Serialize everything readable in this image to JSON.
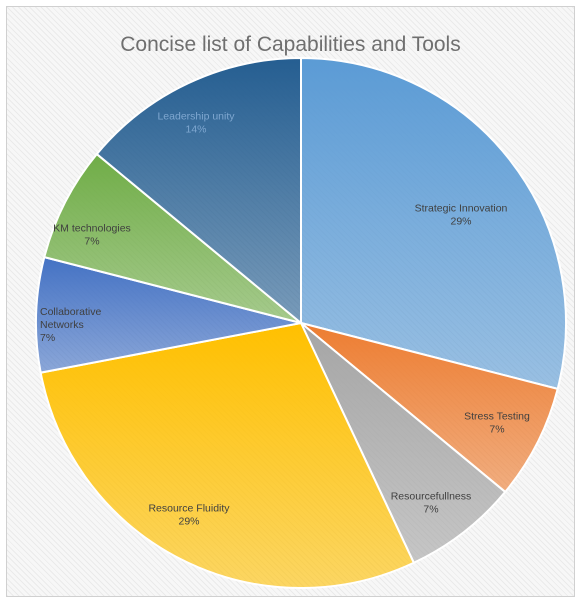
{
  "chart_data": {
    "type": "pie",
    "title": "Concise list of Capabilities and Tools",
    "categories": [
      "Strategic Innovation",
      "Stress Testing",
      "Resourcefullness",
      "Resource Fluidity",
      "Collaborative Networks",
      "KM technologies",
      "Leadership unity"
    ],
    "values": [
      29,
      7,
      7,
      29,
      7,
      7,
      14
    ],
    "value_labels": [
      "29%",
      "7%",
      "7%",
      "29%",
      "7%",
      "7%",
      "14%"
    ],
    "colors": [
      "#5b9bd5",
      "#ed7d31",
      "#a5a5a5",
      "#ffc000",
      "#4472c4",
      "#70ad47",
      "#255e91"
    ],
    "legend": "none",
    "data_labels": "inside"
  }
}
